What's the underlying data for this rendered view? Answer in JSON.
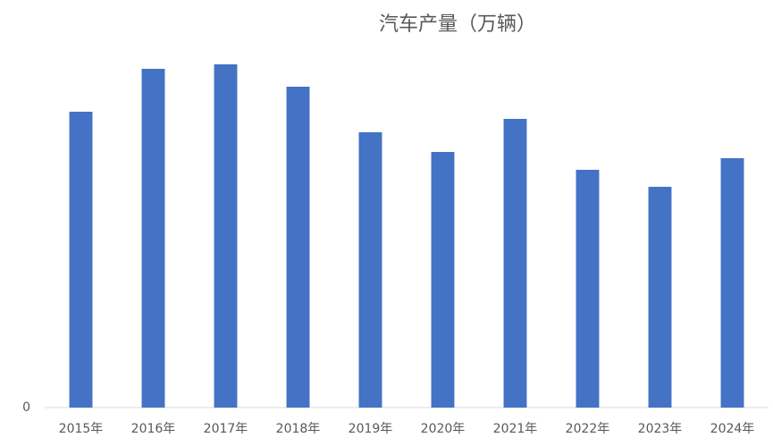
{
  "chart_data": {
    "type": "bar",
    "title": "汽车产量（万辆）",
    "categories": [
      "2015年",
      "2016年",
      "2017年",
      "2018年",
      "2019年",
      "2020年",
      "2021年",
      "2022年",
      "2023年",
      "2024年"
    ],
    "values": [
      331,
      379,
      384,
      359,
      308,
      286,
      323,
      266,
      247,
      279
    ],
    "color": "#4472c4",
    "ylim": [
      0,
      400
    ],
    "yticks": [
      0
    ],
    "grid": false
  }
}
